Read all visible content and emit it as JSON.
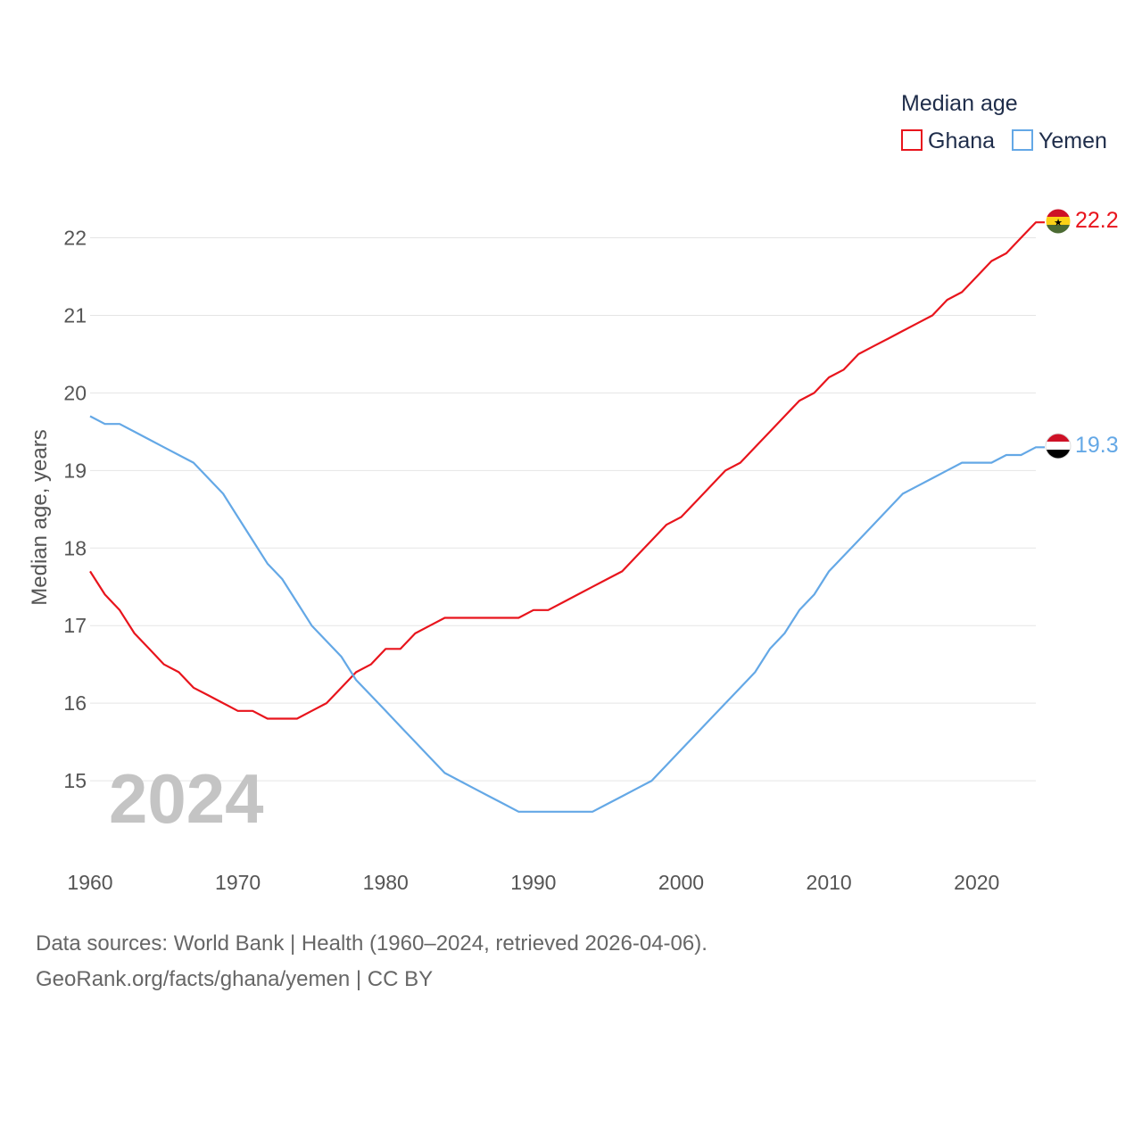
{
  "colors": {
    "ghana": "#e8141c",
    "yemen": "#64a8e6",
    "grid": "#e5e5e5",
    "text": "#555555"
  },
  "chart_data": {
    "type": "line",
    "title": "Median age",
    "xlabel": "",
    "ylabel": "Median age, years",
    "xlim": [
      1960,
      2024
    ],
    "ylim": [
      14,
      22.8
    ],
    "x_ticks": [
      1960,
      1970,
      1980,
      1990,
      2000,
      2010,
      2020
    ],
    "y_ticks": [
      15,
      16,
      17,
      18,
      19,
      20,
      21,
      22
    ],
    "grid": true,
    "legend_position": "top-right",
    "year_label": "2024",
    "x": [
      1960,
      1961,
      1962,
      1963,
      1964,
      1965,
      1966,
      1967,
      1968,
      1969,
      1970,
      1971,
      1972,
      1973,
      1974,
      1975,
      1976,
      1977,
      1978,
      1979,
      1980,
      1981,
      1982,
      1983,
      1984,
      1985,
      1986,
      1987,
      1988,
      1989,
      1990,
      1991,
      1992,
      1993,
      1994,
      1995,
      1996,
      1997,
      1998,
      1999,
      2000,
      2001,
      2002,
      2003,
      2004,
      2005,
      2006,
      2007,
      2008,
      2009,
      2010,
      2011,
      2012,
      2013,
      2014,
      2015,
      2016,
      2017,
      2018,
      2019,
      2020,
      2021,
      2022,
      2023,
      2024
    ],
    "series": [
      {
        "name": "Ghana",
        "color": "#e8141c",
        "end_label": "22.2",
        "values": [
          17.7,
          17.4,
          17.2,
          16.9,
          16.7,
          16.5,
          16.4,
          16.2,
          16.1,
          16.0,
          15.9,
          15.9,
          15.8,
          15.8,
          15.8,
          15.9,
          16.0,
          16.2,
          16.4,
          16.5,
          16.7,
          16.7,
          16.9,
          17.0,
          17.1,
          17.1,
          17.1,
          17.1,
          17.1,
          17.1,
          17.2,
          17.2,
          17.3,
          17.4,
          17.5,
          17.6,
          17.7,
          17.9,
          18.1,
          18.3,
          18.4,
          18.6,
          18.8,
          19.0,
          19.1,
          19.3,
          19.5,
          19.7,
          19.9,
          20.0,
          20.2,
          20.3,
          20.5,
          20.6,
          20.7,
          20.8,
          20.9,
          21.0,
          21.2,
          21.3,
          21.5,
          21.7,
          21.8,
          22.0,
          22.2
        ]
      },
      {
        "name": "Yemen",
        "color": "#64a8e6",
        "end_label": "19.3",
        "values": [
          19.7,
          19.6,
          19.6,
          19.5,
          19.4,
          19.3,
          19.2,
          19.1,
          18.9,
          18.7,
          18.4,
          18.1,
          17.8,
          17.6,
          17.3,
          17.0,
          16.8,
          16.6,
          16.3,
          16.1,
          15.9,
          15.7,
          15.5,
          15.3,
          15.1,
          15.0,
          14.9,
          14.8,
          14.7,
          14.6,
          14.6,
          14.6,
          14.6,
          14.6,
          14.6,
          14.7,
          14.8,
          14.9,
          15.0,
          15.2,
          15.4,
          15.6,
          15.8,
          16.0,
          16.2,
          16.4,
          16.7,
          16.9,
          17.2,
          17.4,
          17.7,
          17.9,
          18.1,
          18.3,
          18.5,
          18.7,
          18.8,
          18.9,
          19.0,
          19.1,
          19.1,
          19.1,
          19.2,
          19.2,
          19.3
        ]
      }
    ]
  },
  "footer": {
    "line1": "Data sources: World Bank | Health (1960–2024, retrieved 2026-04-06).",
    "line2": "GeoRank.org/facts/ghana/yemen | CC BY"
  }
}
